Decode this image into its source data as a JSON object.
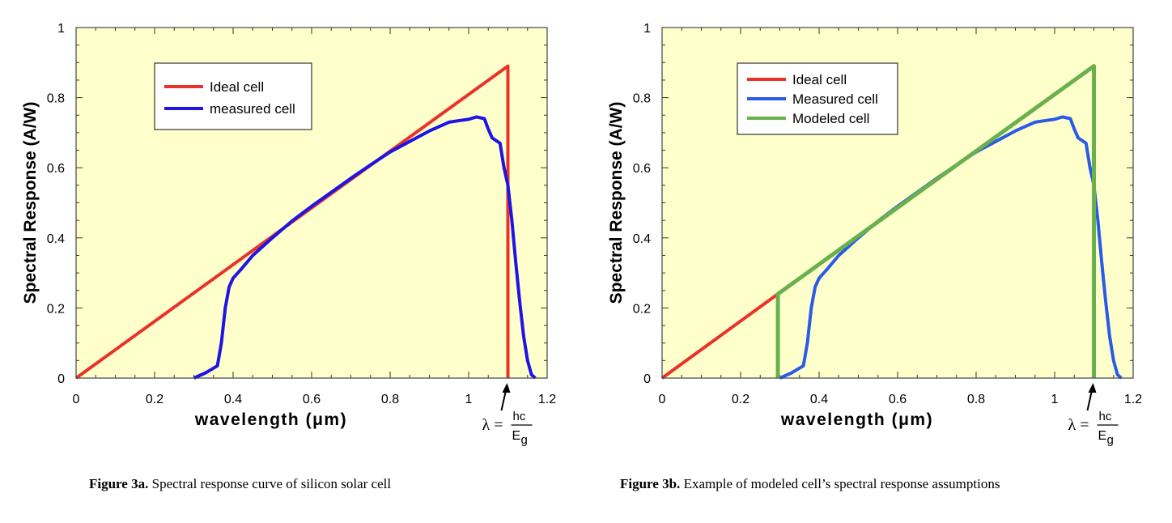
{
  "chart_data": [
    {
      "type": "line",
      "xlabel": "wavelength (μm)",
      "ylabel": "Spectral Response (A/W)",
      "xlim": [
        0,
        1.2
      ],
      "ylim": [
        0,
        1
      ],
      "xticks": [
        "0",
        "0.2",
        "0.4",
        "0.6",
        "0.8",
        "1",
        "1.2"
      ],
      "yticks": [
        "0",
        "0.2",
        "0.4",
        "0.6",
        "0.8",
        "1"
      ],
      "background": "#ffffcc",
      "legend_position": "top-left",
      "annotation": {
        "lambda": "λ =",
        "numerator": "hc",
        "denominator": "E",
        "subscript": "g",
        "x": 1.1
      },
      "caption": {
        "label": "Figure 3a.",
        "text": " Spectral response curve of silicon solar cell"
      },
      "series": [
        {
          "name": "Ideal cell",
          "color": "#e8322a",
          "points": [
            [
              0,
              0
            ],
            [
              1.1,
              0.89
            ],
            [
              1.1,
              0
            ]
          ]
        },
        {
          "name": "measured cell",
          "color": "#1e14e6",
          "points": [
            [
              0.3,
              0
            ],
            [
              0.33,
              0.015
            ],
            [
              0.36,
              0.035
            ],
            [
              0.37,
              0.1
            ],
            [
              0.38,
              0.2
            ],
            [
              0.39,
              0.26
            ],
            [
              0.4,
              0.285
            ],
            [
              0.42,
              0.31
            ],
            [
              0.45,
              0.35
            ],
            [
              0.5,
              0.4
            ],
            [
              0.55,
              0.448
            ],
            [
              0.6,
              0.49
            ],
            [
              0.65,
              0.53
            ],
            [
              0.7,
              0.57
            ],
            [
              0.75,
              0.608
            ],
            [
              0.8,
              0.645
            ],
            [
              0.85,
              0.675
            ],
            [
              0.9,
              0.705
            ],
            [
              0.95,
              0.73
            ],
            [
              0.98,
              0.735
            ],
            [
              1.0,
              0.738
            ],
            [
              1.02,
              0.745
            ],
            [
              1.04,
              0.74
            ],
            [
              1.05,
              0.71
            ],
            [
              1.06,
              0.685
            ],
            [
              1.08,
              0.67
            ],
            [
              1.09,
              0.6
            ],
            [
              1.1,
              0.55
            ],
            [
              1.11,
              0.45
            ],
            [
              1.12,
              0.33
            ],
            [
              1.13,
              0.22
            ],
            [
              1.14,
              0.12
            ],
            [
              1.15,
              0.05
            ],
            [
              1.16,
              0.01
            ],
            [
              1.17,
              0
            ]
          ]
        }
      ]
    },
    {
      "type": "line",
      "xlabel": "wavelength (μm)",
      "ylabel": "Spectral Response (A/W)",
      "xlim": [
        0,
        1.2
      ],
      "ylim": [
        0,
        1
      ],
      "xticks": [
        "0",
        "0.2",
        "0.4",
        "0.6",
        "0.8",
        "1",
        "1.2"
      ],
      "yticks": [
        "0",
        "0.2",
        "0.4",
        "0.6",
        "0.8",
        "1"
      ],
      "background": "#ffffcc",
      "legend_position": "top-left",
      "annotation": {
        "lambda": "λ =",
        "numerator": "hc",
        "denominator": "E",
        "subscript": "g",
        "x": 1.1
      },
      "caption": {
        "label": "Figure 3b.",
        "text": " Example of modeled cell’s spectral response assumptions"
      },
      "series": [
        {
          "name": "Ideal cell",
          "color": "#e8322a",
          "points": [
            [
              0,
              0
            ],
            [
              0.295,
              0.24
            ]
          ]
        },
        {
          "name": "Measured cell",
          "color": "#2a5ae8",
          "points": [
            [
              0.3,
              0
            ],
            [
              0.33,
              0.015
            ],
            [
              0.36,
              0.035
            ],
            [
              0.37,
              0.1
            ],
            [
              0.38,
              0.2
            ],
            [
              0.39,
              0.26
            ],
            [
              0.4,
              0.285
            ],
            [
              0.42,
              0.31
            ],
            [
              0.45,
              0.35
            ],
            [
              0.5,
              0.4
            ],
            [
              0.55,
              0.448
            ],
            [
              0.6,
              0.49
            ],
            [
              0.65,
              0.53
            ],
            [
              0.7,
              0.57
            ],
            [
              0.75,
              0.608
            ],
            [
              0.8,
              0.645
            ],
            [
              0.85,
              0.675
            ],
            [
              0.9,
              0.705
            ],
            [
              0.95,
              0.73
            ],
            [
              0.98,
              0.735
            ],
            [
              1.0,
              0.738
            ],
            [
              1.02,
              0.745
            ],
            [
              1.04,
              0.74
            ],
            [
              1.05,
              0.71
            ],
            [
              1.06,
              0.685
            ],
            [
              1.08,
              0.67
            ],
            [
              1.09,
              0.6
            ],
            [
              1.1,
              0.55
            ],
            [
              1.11,
              0.45
            ],
            [
              1.12,
              0.33
            ],
            [
              1.13,
              0.22
            ],
            [
              1.14,
              0.12
            ],
            [
              1.15,
              0.05
            ],
            [
              1.16,
              0.01
            ],
            [
              1.17,
              0
            ]
          ]
        },
        {
          "name": "Modeled cell",
          "color": "#6ab04c",
          "points": [
            [
              0.295,
              0
            ],
            [
              0.295,
              0.24
            ],
            [
              1.1,
              0.89
            ],
            [
              1.1,
              0
            ]
          ]
        }
      ]
    }
  ]
}
